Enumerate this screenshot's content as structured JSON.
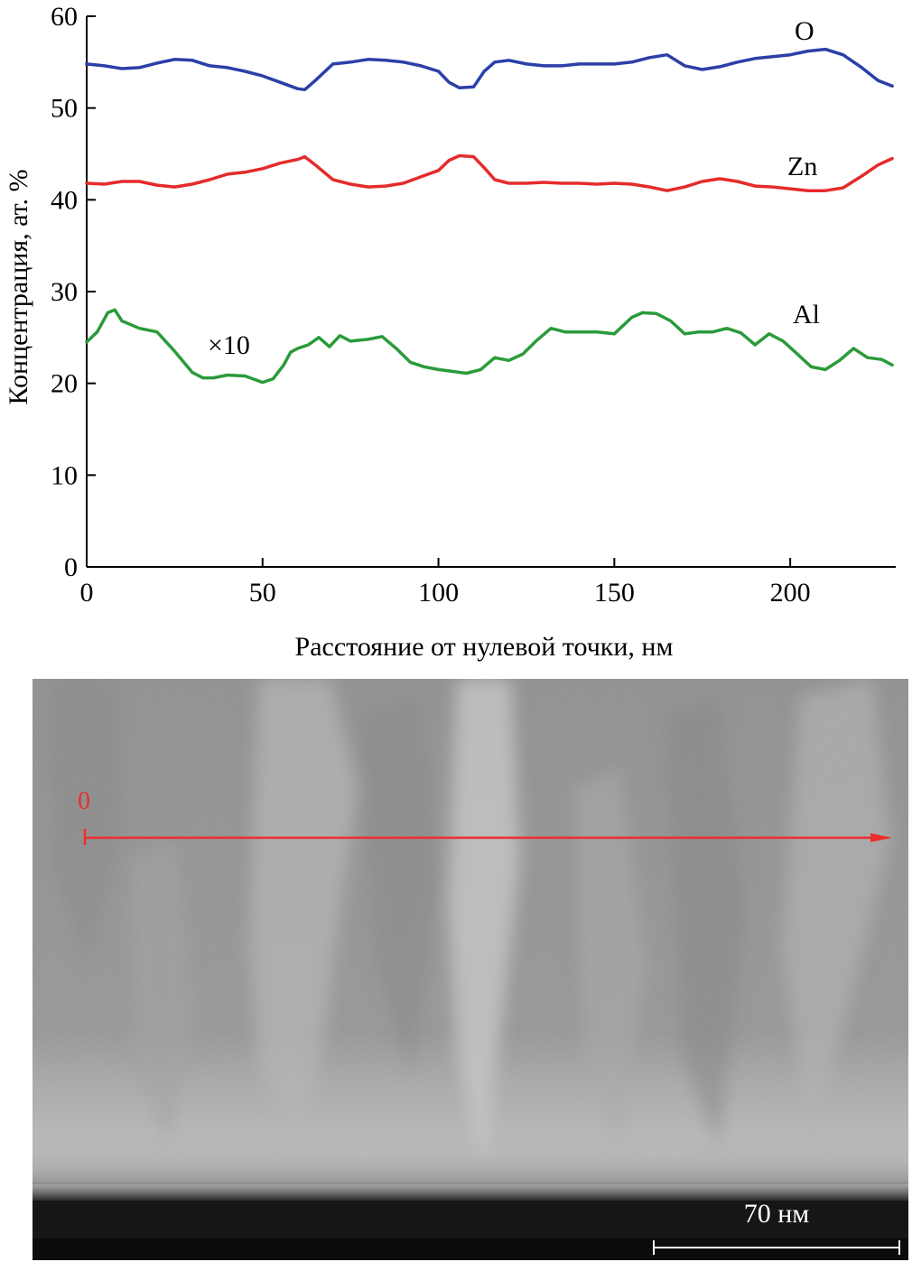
{
  "chart_data": {
    "type": "line",
    "ylabel": "Концентрация, ат. %",
    "xlabel": "Расстояние от нулевой точки, нм",
    "xlim": [
      0,
      230
    ],
    "ylim": [
      0,
      60
    ],
    "x_ticks": [
      "0",
      "50",
      "100",
      "150",
      "200"
    ],
    "y_ticks": [
      "0",
      "10",
      "20",
      "30",
      "40",
      "50",
      "60"
    ],
    "grid": false,
    "series": [
      {
        "name": "O",
        "color": "#2b3fa8",
        "x": [
          0,
          5,
          10,
          15,
          20,
          25,
          30,
          35,
          40,
          45,
          50,
          55,
          60,
          62,
          65,
          70,
          75,
          80,
          85,
          90,
          95,
          100,
          103,
          106,
          110,
          113,
          116,
          120,
          125,
          130,
          135,
          140,
          145,
          150,
          155,
          160,
          165,
          170,
          175,
          180,
          185,
          190,
          195,
          200,
          205,
          210,
          215,
          220,
          225,
          229
        ],
        "y": [
          54.8,
          54.6,
          54.3,
          54.4,
          54.9,
          55.3,
          55.2,
          54.6,
          54.4,
          54.0,
          53.5,
          52.8,
          52.1,
          52.0,
          53.0,
          54.8,
          55.0,
          55.3,
          55.2,
          55.0,
          54.6,
          54.0,
          52.8,
          52.2,
          52.3,
          54.0,
          55.0,
          55.2,
          54.8,
          54.6,
          54.6,
          54.8,
          54.8,
          54.8,
          55.0,
          55.5,
          55.8,
          54.6,
          54.2,
          54.5,
          55.0,
          55.4,
          55.6,
          55.8,
          56.2,
          56.4,
          55.8,
          54.5,
          53.0,
          52.4
        ]
      },
      {
        "name": "Zn",
        "color": "#e52b2b",
        "x": [
          0,
          5,
          10,
          15,
          20,
          25,
          30,
          35,
          40,
          45,
          50,
          55,
          60,
          62,
          65,
          70,
          75,
          80,
          85,
          90,
          95,
          100,
          103,
          106,
          110,
          113,
          116,
          120,
          125,
          130,
          135,
          140,
          145,
          150,
          155,
          160,
          165,
          170,
          175,
          180,
          185,
          190,
          195,
          200,
          205,
          210,
          215,
          220,
          225,
          229
        ],
        "y": [
          41.8,
          41.7,
          42.0,
          42.0,
          41.6,
          41.4,
          41.7,
          42.2,
          42.8,
          43.0,
          43.4,
          44.0,
          44.4,
          44.7,
          43.8,
          42.2,
          41.7,
          41.4,
          41.5,
          41.8,
          42.5,
          43.2,
          44.3,
          44.8,
          44.7,
          43.5,
          42.2,
          41.8,
          41.8,
          41.9,
          41.8,
          41.8,
          41.7,
          41.8,
          41.7,
          41.4,
          41.0,
          41.4,
          42.0,
          42.3,
          42.0,
          41.5,
          41.4,
          41.2,
          41.0,
          41.0,
          41.3,
          42.5,
          43.8,
          44.5
        ]
      },
      {
        "name": "Al",
        "color": "#2a9b3a",
        "x": [
          0,
          3,
          6,
          8,
          10,
          15,
          20,
          25,
          30,
          33,
          36,
          40,
          45,
          50,
          53,
          56,
          58,
          60,
          63,
          66,
          69,
          72,
          75,
          80,
          84,
          88,
          92,
          96,
          100,
          104,
          108,
          112,
          116,
          120,
          124,
          128,
          132,
          136,
          140,
          145,
          150,
          155,
          158,
          162,
          166,
          170,
          174,
          178,
          182,
          186,
          190,
          194,
          198,
          202,
          206,
          210,
          214,
          218,
          222,
          226,
          229
        ],
        "y": [
          24.5,
          25.6,
          27.7,
          28.0,
          26.8,
          26.0,
          25.6,
          23.5,
          21.2,
          20.6,
          20.6,
          20.9,
          20.8,
          20.1,
          20.5,
          22.0,
          23.4,
          23.8,
          24.2,
          25.0,
          24.0,
          25.2,
          24.6,
          24.8,
          25.1,
          23.8,
          22.3,
          21.8,
          21.5,
          21.3,
          21.1,
          21.5,
          22.8,
          22.5,
          23.2,
          24.7,
          26.0,
          25.6,
          25.6,
          25.6,
          25.4,
          27.2,
          27.7,
          27.6,
          26.8,
          25.4,
          25.6,
          25.6,
          26.0,
          25.5,
          24.2,
          25.4,
          24.6,
          23.2,
          21.8,
          21.5,
          22.5,
          23.8,
          22.8,
          22.6,
          22.0
        ]
      }
    ],
    "annotations": [
      {
        "text": "×10",
        "series": "Al"
      }
    ]
  },
  "micrograph": {
    "marker_label": "0",
    "scale_bar_label": "70 нм"
  }
}
